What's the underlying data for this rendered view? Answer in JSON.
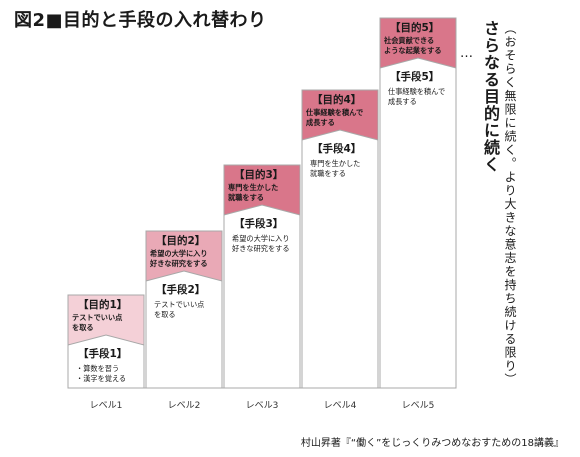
{
  "title": "図2■目的と手段の入れ替わり",
  "vertical_main": "さらなる目的に続く",
  "vertical_sub": "（おそらく無限に続く。より大きな意志を持ち続ける限り）",
  "ellipsis": "…",
  "source": "村山昇著『“働く”をじっくりみつめなおすための18講義』",
  "colors": {
    "goal_fill": "#f4d0d7",
    "goal_fill_strong": "#d9768a",
    "border": "#a8a8a8",
    "step_fill": "#ffffff"
  },
  "levels": [
    {
      "label": "レベル1",
      "goal_title": "【目的1】",
      "goal_text": [
        "テストでいい点",
        "を取る"
      ],
      "means_title": "【手段1】",
      "means_text": [
        "・算数を習う",
        "・漢字を覚える"
      ]
    },
    {
      "label": "レベル2",
      "goal_title": "【目的2】",
      "goal_text": [
        "希望の大学に入り",
        "好きな研究をする"
      ],
      "means_title": "【手段2】",
      "means_text": [
        "テストでいい点",
        "を取る"
      ]
    },
    {
      "label": "レベル3",
      "goal_title": "【目的3】",
      "goal_text": [
        "専門を生かした",
        "就職をする"
      ],
      "means_title": "【手段3】",
      "means_text": [
        "希望の大学に入り",
        "好きな研究をする"
      ]
    },
    {
      "label": "レベル4",
      "goal_title": "【目的4】",
      "goal_text": [
        "仕事経験を積んで",
        "成長する"
      ],
      "means_title": "【手段4】",
      "means_text": [
        "専門を生かした",
        "就職をする"
      ]
    },
    {
      "label": "レベル5",
      "goal_title": "【目的5】",
      "goal_text": [
        "社会貢献できる",
        "ような起業をする"
      ],
      "means_title": "【手段5】",
      "means_text": [
        "仕事経験を積んで",
        "成長する"
      ]
    }
  ]
}
